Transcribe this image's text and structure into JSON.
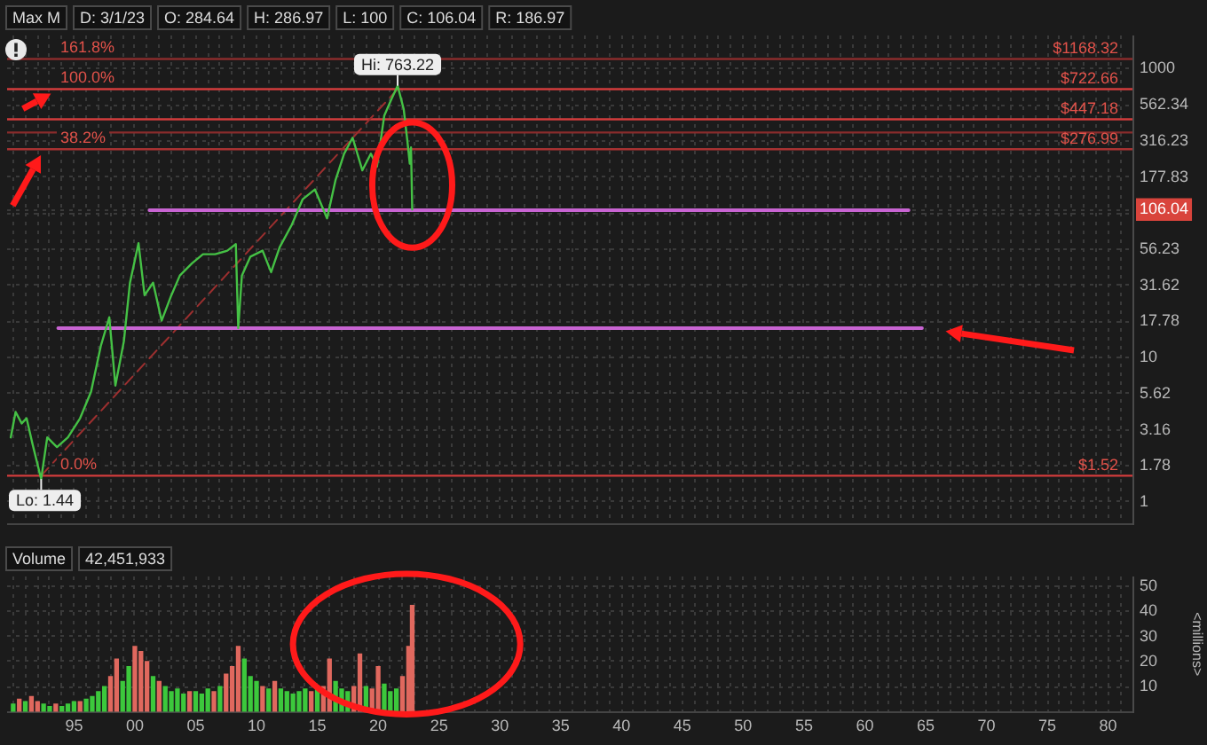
{
  "chart_data": [
    {
      "type": "line",
      "annotations": [
        "Max M",
        "D: 3/1/23",
        "O: 284.64",
        "H: 286.97",
        "L: 100",
        "C: 106.04",
        "R: 186.97",
        {
          "text": "Hi: 763.22",
          "x": 2021.6,
          "y": 763.22
        },
        {
          "text": "Lo: 1.44",
          "x": 1992.3,
          "y": 1.44
        },
        {
          "text": "161.8%",
          "y": 1168.32
        },
        {
          "text": "100.0%",
          "y": 722.66
        },
        {
          "text": "38.2%",
          "y": 276.99
        },
        {
          "text": "0.0%",
          "y": 1.52
        }
      ],
      "x": [
        1989.8,
        1990.2,
        1990.7,
        1991.1,
        1991.6,
        1992.3,
        1992.8,
        1993.6,
        1994.5,
        1995.5,
        1996.4,
        1997.2,
        1997.9,
        1998.4,
        1999.1,
        1999.6,
        2000.3,
        2000.8,
        2001.5,
        2002.2,
        2003.0,
        2003.7,
        2004.7,
        2005.6,
        2006.6,
        2007.6,
        2008.3,
        2008.5,
        2008.8,
        2009.5,
        2010.5,
        2011.2,
        2011.9,
        2012.9,
        2013.8,
        2014.8,
        2015.8,
        2016.5,
        2017.2,
        2017.9,
        2018.7,
        2019.4,
        2019.9,
        2020.5,
        2021.1,
        2021.6,
        2022.1,
        2022.4,
        2022.6,
        2022.7,
        2022.8
      ],
      "series": [
        {
          "color": "#45c145",
          "values": [
            2.8,
            4.2,
            3.5,
            3.8,
            2.5,
            1.44,
            2.8,
            2.4,
            2.8,
            3.8,
            5.8,
            12,
            19,
            6.4,
            13,
            33,
            62,
            27,
            33,
            18,
            27,
            37,
            45,
            52,
            52,
            55,
            61,
            16,
            37,
            50,
            55,
            39,
            58,
            83,
            125,
            146,
            92,
            170,
            258,
            333,
            198,
            258,
            210,
            473,
            618,
            763.22,
            525,
            317,
            220,
            285,
            106.04
          ]
        },
        {
          "type": "line",
          "x": [
            2001.2,
            2063.6
          ],
          "values": [
            105,
            105
          ],
          "color": "#c864d2"
        },
        {
          "type": "line",
          "x": [
            1993.7,
            2064.7
          ],
          "values": [
            16,
            16
          ],
          "color": "#c864d2"
        },
        {
          "type": "line",
          "x": [
            1992.3,
            2021.6
          ],
          "values": [
            1.52,
            722.66
          ],
          "color": "#9c2f2f",
          "line_style": "dashed"
        }
      ],
      "xlim": [
        1989.5,
        2082
      ],
      "ylim": [
        0.7,
        1700
      ],
      "log": true,
      "grid": true,
      "tick_labels": "y",
      "xticks": [
        {
          "value": 1990,
          "label": null
        },
        {
          "value": 1991,
          "label": null
        },
        {
          "value": 1992,
          "label": null
        },
        {
          "value": 1993,
          "label": null
        },
        {
          "value": 1994,
          "label": null
        },
        {
          "value": 1995,
          "label": null
        },
        {
          "value": 1996,
          "label": null
        },
        {
          "value": 1997,
          "label": null
        },
        {
          "value": 1998,
          "label": null
        },
        {
          "value": 1999,
          "label": null
        },
        {
          "value": 2000,
          "label": null
        },
        {
          "value": 2001,
          "label": null
        },
        {
          "value": 2002,
          "label": null
        },
        {
          "value": 2003,
          "label": null
        },
        {
          "value": 2004,
          "label": null
        },
        {
          "value": 2005,
          "label": null
        },
        {
          "value": 2006,
          "label": null
        },
        {
          "value": 2007,
          "label": null
        },
        {
          "value": 2008,
          "label": null
        },
        {
          "value": 2009,
          "label": null
        },
        {
          "value": 2010,
          "label": null
        },
        {
          "value": 2011,
          "label": null
        },
        {
          "value": 2012,
          "label": null
        },
        {
          "value": 2013,
          "label": null
        },
        {
          "value": 2014,
          "label": null
        },
        {
          "value": 2015,
          "label": null
        },
        {
          "value": 2016,
          "label": null
        },
        {
          "value": 2017,
          "label": null
        },
        {
          "value": 2018,
          "label": null
        },
        {
          "value": 2019,
          "label": null
        },
        {
          "value": 2020,
          "label": null
        },
        {
          "value": 2021,
          "label": null
        },
        {
          "value": 2022,
          "label": null
        },
        {
          "value": 2023,
          "label": null
        },
        {
          "value": 2024,
          "label": null
        },
        {
          "value": 2025,
          "label": null
        },
        {
          "value": 2026,
          "label": null
        },
        {
          "value": 2027,
          "label": null
        },
        {
          "value": 2028,
          "label": null
        },
        {
          "value": 2029,
          "label": null
        },
        {
          "value": 2030,
          "label": null
        },
        {
          "value": 2031,
          "label": null
        },
        {
          "value": 2032,
          "label": null
        },
        {
          "value": 2033,
          "label": null
        },
        {
          "value": 2034,
          "label": null
        },
        {
          "value": 2035,
          "label": null
        },
        {
          "value": 2036,
          "label": null
        },
        {
          "value": 2037,
          "label": null
        },
        {
          "value": 2038,
          "label": null
        },
        {
          "value": 2039,
          "label": null
        },
        {
          "value": 2040,
          "label": null
        },
        {
          "value": 2041,
          "label": null
        },
        {
          "value": 2042,
          "label": null
        },
        {
          "value": 2043,
          "label": null
        },
        {
          "value": 2044,
          "label": null
        },
        {
          "value": 2045,
          "label": null
        },
        {
          "value": 2046,
          "label": null
        },
        {
          "value": 2047,
          "label": null
        },
        {
          "value": 2048,
          "label": null
        },
        {
          "value": 2049,
          "label": null
        },
        {
          "value": 2050,
          "label": null
        },
        {
          "value": 2051,
          "label": null
        },
        {
          "value": 2052,
          "label": null
        },
        {
          "value": 2053,
          "label": null
        },
        {
          "value": 2054,
          "label": null
        },
        {
          "value": 2055,
          "label": null
        },
        {
          "value": 2056,
          "label": null
        },
        {
          "value": 2057,
          "label": null
        },
        {
          "value": 2058,
          "label": null
        },
        {
          "value": 2059,
          "label": null
        },
        {
          "value": 2060,
          "label": null
        },
        {
          "value": 2061,
          "label": null
        },
        {
          "value": 2062,
          "label": null
        },
        {
          "value": 2063,
          "label": null
        },
        {
          "value": 2064,
          "label": null
        },
        {
          "value": 2065,
          "label": null
        },
        {
          "value": 2066,
          "label": null
        },
        {
          "value": 2067,
          "label": null
        },
        {
          "value": 2068,
          "label": null
        },
        {
          "value": 2069,
          "label": null
        },
        {
          "value": 2070,
          "label": null
        },
        {
          "value": 2071,
          "label": null
        },
        {
          "value": 2072,
          "label": null
        },
        {
          "value": 2073,
          "label": null
        },
        {
          "value": 2074,
          "label": null
        },
        {
          "value": 2075,
          "label": null
        },
        {
          "value": 2076,
          "label": null
        },
        {
          "value": 2077,
          "label": null
        },
        {
          "value": 2078,
          "label": null
        },
        {
          "value": 2079,
          "label": null
        },
        {
          "value": 2080,
          "label": null
        },
        {
          "value": 2081,
          "label": null
        }
      ],
      "yticks": [
        1,
        1.78,
        3.16,
        5.62,
        10,
        17.78,
        31.62,
        56.23,
        {
          "value": 100,
          "label": null
        },
        {
          "value": 106.04,
          "label": "106.04"
        },
        177.83,
        316.23,
        562.34,
        1000
      ],
      "ref_lines": [
        {
          "axis": "y",
          "value": 1168.32,
          "label": "$1168.32",
          "color": "#8a2c2c"
        },
        {
          "axis": "y",
          "value": 722.66,
          "label": "$722.66",
          "color": "#d23c3c"
        },
        {
          "axis": "y",
          "value": 447.18,
          "label": "$447.18",
          "color": "#d23c3c"
        },
        {
          "axis": "y",
          "value": 362.09,
          "color": "#8a2c2c"
        },
        {
          "axis": "y",
          "value": 276.99,
          "label": "$276.99",
          "color": "#a83232"
        },
        {
          "axis": "y",
          "value": 1.52,
          "label": "$1.52",
          "color": "#d23c3c"
        }
      ]
    },
    {
      "type": "bar",
      "title": "Volume",
      "ylabel": "<millions>",
      "annotations": [
        "42,451,933"
      ],
      "x": [
        1990,
        1990.5,
        1991,
        1991.5,
        1992,
        1992.5,
        1993,
        1993.5,
        1994,
        1994.5,
        1995,
        1995.5,
        1996,
        1996.5,
        1997,
        1997.5,
        1998,
        1998.5,
        1999,
        1999.5,
        2000,
        2000.5,
        2001,
        2001.5,
        2002,
        2002.5,
        2003,
        2003.5,
        2004,
        2004.5,
        2005,
        2005.5,
        2006,
        2006.5,
        2007,
        2007.5,
        2008,
        2008.5,
        2009,
        2009.5,
        2010,
        2010.5,
        2011,
        2011.5,
        2012,
        2012.5,
        2013,
        2013.5,
        2014,
        2014.5,
        2015,
        2015.5,
        2016,
        2016.5,
        2017,
        2017.5,
        2018,
        2018.5,
        2019,
        2019.5,
        2020,
        2020.5,
        2021,
        2021.5,
        2022,
        2022.5,
        2022.8
      ],
      "values": [
        3,
        5,
        4,
        6,
        4,
        3,
        2,
        3,
        2,
        3,
        4,
        4,
        5,
        6,
        8,
        10,
        14,
        21,
        12,
        18,
        26,
        24,
        20,
        14,
        12,
        10,
        8,
        9,
        7,
        8,
        8,
        7,
        9,
        8,
        10,
        15,
        18,
        26,
        21,
        14,
        12,
        10,
        9,
        12,
        9,
        8,
        7,
        8,
        9,
        8,
        9,
        10,
        21,
        12,
        9,
        8,
        10,
        23,
        10,
        9,
        18,
        11,
        8,
        9,
        14,
        26,
        42.45
      ],
      "colors": [
        "#3cc83c",
        "#e0685e",
        "#3cc83c",
        "#e0685e",
        "#e0685e",
        "#3cc83c",
        "#3cc83c",
        "#e0685e",
        "#3cc83c",
        "#3cc83c",
        "#3cc83c",
        "#e0685e",
        "#3cc83c",
        "#3cc83c",
        "#3cc83c",
        "#3cc83c",
        "#e0685e",
        "#e0685e",
        "#3cc83c",
        "#3cc83c",
        "#e0685e",
        "#e0685e",
        "#e0685e",
        "#3cc83c",
        "#e0685e",
        "#3cc83c",
        "#3cc83c",
        "#3cc83c",
        "#3cc83c",
        "#e0685e",
        "#3cc83c",
        "#3cc83c",
        "#3cc83c",
        "#e0685e",
        "#3cc83c",
        "#e0685e",
        "#e0685e",
        "#e0685e",
        "#3cc83c",
        "#3cc83c",
        "#3cc83c",
        "#e0685e",
        "#3cc83c",
        "#e0685e",
        "#3cc83c",
        "#3cc83c",
        "#3cc83c",
        "#3cc83c",
        "#3cc83c",
        "#e0685e",
        "#3cc83c",
        "#e0685e",
        "#e0685e",
        "#3cc83c",
        "#3cc83c",
        "#3cc83c",
        "#e0685e",
        "#e0685e",
        "#3cc83c",
        "#e0685e",
        "#e0685e",
        "#3cc83c",
        "#3cc83c",
        "#3cc83c",
        "#e0685e",
        "#e0685e",
        "#e0685e"
      ],
      "xlim": [
        1989.5,
        2082
      ],
      "ylim": [
        0,
        54
      ],
      "grid": true,
      "xticks": [
        {
          "value": 1990,
          "label": null
        },
        {
          "value": 1991,
          "label": null
        },
        {
          "value": 1992,
          "label": null
        },
        {
          "value": 1993,
          "label": null
        },
        {
          "value": 1994,
          "label": null
        },
        {
          "value": 1995,
          "label": "95"
        },
        {
          "value": 1996,
          "label": null
        },
        {
          "value": 1997,
          "label": null
        },
        {
          "value": 1998,
          "label": null
        },
        {
          "value": 1999,
          "label": null
        },
        {
          "value": 2000,
          "label": "00"
        },
        {
          "value": 2001,
          "label": null
        },
        {
          "value": 2002,
          "label": null
        },
        {
          "value": 2003,
          "label": null
        },
        {
          "value": 2004,
          "label": null
        },
        {
          "value": 2005,
          "label": "05"
        },
        {
          "value": 2006,
          "label": null
        },
        {
          "value": 2007,
          "label": null
        },
        {
          "value": 2008,
          "label": null
        },
        {
          "value": 2009,
          "label": null
        },
        {
          "value": 2010,
          "label": "10"
        },
        {
          "value": 2011,
          "label": null
        },
        {
          "value": 2012,
          "label": null
        },
        {
          "value": 2013,
          "label": null
        },
        {
          "value": 2014,
          "label": null
        },
        {
          "value": 2015,
          "label": "15"
        },
        {
          "value": 2016,
          "label": null
        },
        {
          "value": 2017,
          "label": null
        },
        {
          "value": 2018,
          "label": null
        },
        {
          "value": 2019,
          "label": null
        },
        {
          "value": 2020,
          "label": "20"
        },
        {
          "value": 2021,
          "label": null
        },
        {
          "value": 2022,
          "label": null
        },
        {
          "value": 2023,
          "label": null
        },
        {
          "value": 2024,
          "label": null
        },
        {
          "value": 2025,
          "label": "25"
        },
        {
          "value": 2026,
          "label": null
        },
        {
          "value": 2027,
          "label": null
        },
        {
          "value": 2028,
          "label": null
        },
        {
          "value": 2029,
          "label": null
        },
        {
          "value": 2030,
          "label": "30"
        },
        {
          "value": 2031,
          "label": null
        },
        {
          "value": 2032,
          "label": null
        },
        {
          "value": 2033,
          "label": null
        },
        {
          "value": 2034,
          "label": null
        },
        {
          "value": 2035,
          "label": "35"
        },
        {
          "value": 2036,
          "label": null
        },
        {
          "value": 2037,
          "label": null
        },
        {
          "value": 2038,
          "label": null
        },
        {
          "value": 2039,
          "label": null
        },
        {
          "value": 2040,
          "label": "40"
        },
        {
          "value": 2041,
          "label": null
        },
        {
          "value": 2042,
          "label": null
        },
        {
          "value": 2043,
          "label": null
        },
        {
          "value": 2044,
          "label": null
        },
        {
          "value": 2045,
          "label": "45"
        },
        {
          "value": 2046,
          "label": null
        },
        {
          "value": 2047,
          "label": null
        },
        {
          "value": 2048,
          "label": null
        },
        {
          "value": 2049,
          "label": null
        },
        {
          "value": 2050,
          "label": "50"
        },
        {
          "value": 2051,
          "label": null
        },
        {
          "value": 2052,
          "label": null
        },
        {
          "value": 2053,
          "label": null
        },
        {
          "value": 2054,
          "label": null
        },
        {
          "value": 2055,
          "label": "55"
        },
        {
          "value": 2056,
          "label": null
        },
        {
          "value": 2057,
          "label": null
        },
        {
          "value": 2058,
          "label": null
        },
        {
          "value": 2059,
          "label": null
        },
        {
          "value": 2060,
          "label": "60"
        },
        {
          "value": 2061,
          "label": null
        },
        {
          "value": 2062,
          "label": null
        },
        {
          "value": 2063,
          "label": null
        },
        {
          "value": 2064,
          "label": null
        },
        {
          "value": 2065,
          "label": "65"
        },
        {
          "value": 2066,
          "label": null
        },
        {
          "value": 2067,
          "label": null
        },
        {
          "value": 2068,
          "label": null
        },
        {
          "value": 2069,
          "label": null
        },
        {
          "value": 2070,
          "label": "70"
        },
        {
          "value": 2071,
          "label": null
        },
        {
          "value": 2072,
          "label": null
        },
        {
          "value": 2073,
          "label": null
        },
        {
          "value": 2074,
          "label": null
        },
        {
          "value": 2075,
          "label": "75"
        },
        {
          "value": 2076,
          "label": null
        },
        {
          "value": 2077,
          "label": null
        },
        {
          "value": 2078,
          "label": null
        },
        {
          "value": 2079,
          "label": null
        },
        {
          "value": 2080,
          "label": "80"
        },
        {
          "value": 2081,
          "label": null
        }
      ],
      "yticks": [
        10,
        20,
        30,
        40,
        50
      ]
    }
  ]
}
